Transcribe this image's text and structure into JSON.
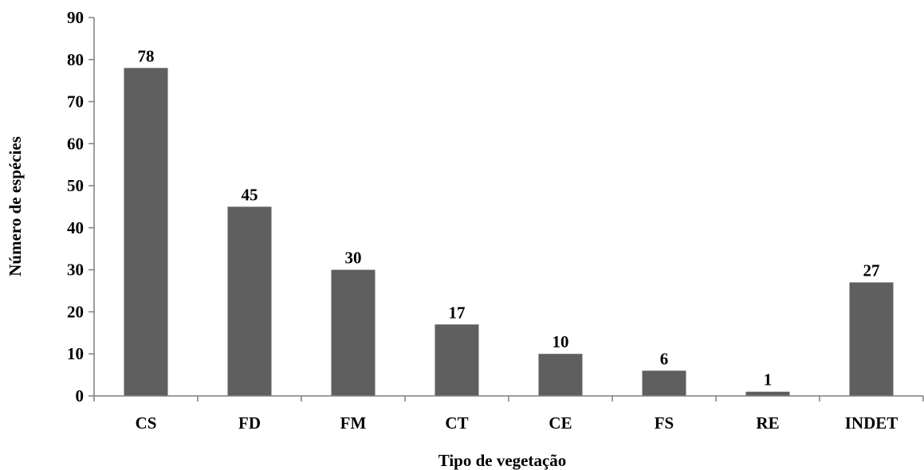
{
  "chart_data": {
    "type": "bar",
    "categories": [
      "CS",
      "FD",
      "FM",
      "CT",
      "CE",
      "FS",
      "RE",
      "INDET"
    ],
    "values": [
      78,
      45,
      30,
      17,
      10,
      6,
      1,
      27
    ],
    "data_labels": [
      "78",
      "45",
      "30",
      "17",
      "10",
      "6",
      "1",
      "27"
    ],
    "title": "",
    "xlabel": "Tipo de vegetação",
    "ylabel": "Número de espécies",
    "ylim": [
      0,
      90
    ],
    "yticks": [
      0,
      10,
      20,
      30,
      40,
      50,
      60,
      70,
      80,
      90
    ],
    "grid": false,
    "legend": "none",
    "bar_color": "#5f5f5f"
  }
}
